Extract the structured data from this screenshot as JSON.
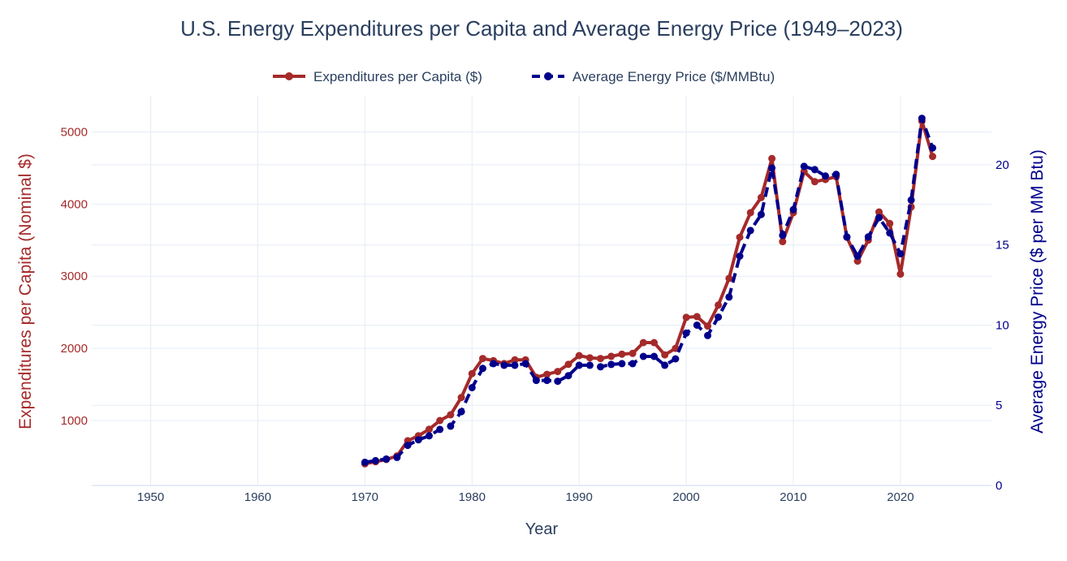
{
  "chart_data": {
    "type": "line",
    "title": "U.S. Energy Expenditures per Capita and Average Energy Price (1949–2023)",
    "xlabel": "Year",
    "ylabel_left": "Expenditures per Capita (Nominal $)",
    "ylabel_right": "Average Energy Price ($ per MM Btu)",
    "xlim": [
      1944.5,
      2028.5
    ],
    "ylim_left": [
      100,
      5500
    ],
    "ylim_right": [
      0,
      24.3
    ],
    "x_ticks": [
      1950,
      1960,
      1970,
      1980,
      1990,
      2000,
      2010,
      2020
    ],
    "y_left_ticks": [
      1000,
      2000,
      3000,
      4000,
      5000
    ],
    "y_right_ticks": [
      0,
      5,
      10,
      15,
      20
    ],
    "grid": true,
    "legend_position": "top-center",
    "colors": {
      "expenditures": "#a52a2a",
      "price": "#00008b",
      "grid": "#e5ecf6",
      "text": "#2a3f5f"
    },
    "x": [
      1970,
      1971,
      1972,
      1973,
      1974,
      1975,
      1976,
      1977,
      1978,
      1979,
      1980,
      1981,
      1982,
      1983,
      1984,
      1985,
      1986,
      1987,
      1988,
      1989,
      1990,
      1991,
      1992,
      1993,
      1994,
      1995,
      1996,
      1997,
      1998,
      1999,
      2000,
      2001,
      2002,
      2003,
      2004,
      2005,
      2006,
      2007,
      2008,
      2009,
      2010,
      2011,
      2012,
      2013,
      2014,
      2015,
      2016,
      2017,
      2018,
      2019,
      2020,
      2021,
      2022,
      2023
    ],
    "series": [
      {
        "name": "Expenditures per Capita ($)",
        "axis": "left",
        "style": "solid",
        "values": [
          400,
          430,
          460,
          510,
          720,
          790,
          880,
          1000,
          1080,
          1320,
          1650,
          1860,
          1830,
          1790,
          1840,
          1840,
          1600,
          1640,
          1680,
          1780,
          1900,
          1870,
          1860,
          1890,
          1920,
          1930,
          2080,
          2080,
          1910,
          2000,
          2430,
          2440,
          2310,
          2600,
          2970,
          3540,
          3880,
          4090,
          4630,
          3480,
          3880,
          4450,
          4310,
          4340,
          4380,
          3540,
          3210,
          3500,
          3890,
          3730,
          3030,
          3960,
          5150,
          4660
        ]
      },
      {
        "name": "Average Energy Price ($/MMBtu)",
        "axis": "right",
        "style": "dashed",
        "values": [
          1.45,
          1.55,
          1.65,
          1.75,
          2.5,
          2.85,
          3.1,
          3.5,
          3.7,
          4.6,
          6.1,
          7.3,
          7.6,
          7.5,
          7.5,
          7.6,
          6.55,
          6.55,
          6.5,
          6.85,
          7.5,
          7.5,
          7.4,
          7.55,
          7.6,
          7.6,
          8.05,
          8.05,
          7.5,
          7.9,
          9.5,
          10.0,
          9.35,
          10.5,
          11.75,
          14.3,
          15.9,
          16.9,
          19.8,
          15.6,
          17.2,
          19.9,
          19.7,
          19.3,
          19.4,
          15.5,
          14.3,
          15.5,
          16.7,
          15.75,
          14.45,
          17.8,
          22.9,
          21.05
        ]
      }
    ]
  }
}
